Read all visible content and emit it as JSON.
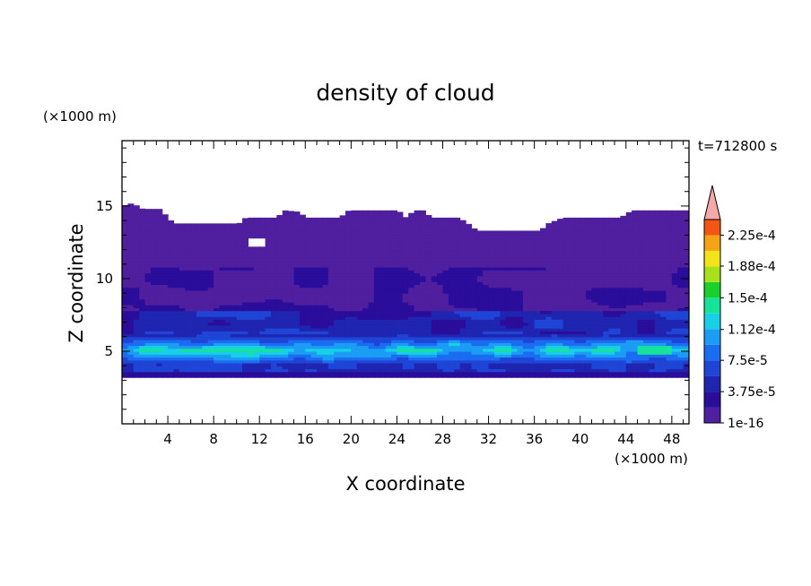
{
  "chart_data": {
    "type": "heatmap",
    "title": "density of cloud",
    "xlabel": "X coordinate",
    "ylabel": "Z coordinate",
    "x_unit_label": "(×1000 m)",
    "z_unit_label": "(×1000 m)",
    "time_label": "t=712800 s",
    "xlim": [
      0,
      49.5
    ],
    "ylim": [
      0,
      19.5
    ],
    "x_ticks": [
      4,
      8,
      12,
      16,
      20,
      24,
      28,
      32,
      36,
      40,
      44,
      48
    ],
    "y_ticks": [
      5,
      10,
      15
    ],
    "colorbar": {
      "labels": [
        "2.25e-4",
        "1.88e-4",
        "1.5e-4",
        "1.12e-4",
        "7.5e-5",
        "3.75e-5",
        "1e-16"
      ],
      "label_levels": [
        0.000225,
        0.000188,
        0.00015,
        0.000112,
        7.5e-05,
        3.75e-05,
        1e-16
      ],
      "levels": [
        1e-16,
        1.875e-05,
        3.75e-05,
        5.625e-05,
        7.5e-05,
        9.375e-05,
        0.0001125,
        0.00013125,
        0.00015,
        0.00016875,
        0.0001875,
        0.00020625,
        0.000225,
        0.00024375
      ],
      "colors": [
        "#4f1f9f",
        "#2a0d9a",
        "#1f25b0",
        "#1f45d6",
        "#1a6cf0",
        "#1b9cf5",
        "#18d0e6",
        "#16e39a",
        "#19d12a",
        "#a7e11a",
        "#f2e419",
        "#f4a316",
        "#f45414",
        "#e8181a"
      ],
      "over_color": "#f4a9a9"
    },
    "cloud": {
      "top_km": [
        [
          0,
          15.0
        ],
        [
          0.9,
          15.2
        ],
        [
          1.8,
          14.8
        ],
        [
          3.3,
          14.8
        ],
        [
          4.5,
          13.8
        ],
        [
          10.2,
          13.8
        ],
        [
          10.8,
          14.2
        ],
        [
          13.5,
          14.2
        ],
        [
          14.2,
          14.7
        ],
        [
          15.5,
          14.6
        ],
        [
          16.0,
          14.2
        ],
        [
          19.0,
          14.2
        ],
        [
          19.8,
          14.7
        ],
        [
          24.1,
          14.7
        ],
        [
          24.8,
          14.2
        ],
        [
          25.5,
          14.7
        ],
        [
          26.3,
          14.7
        ],
        [
          27.0,
          14.2
        ],
        [
          29.4,
          14.2
        ],
        [
          30.2,
          13.8
        ],
        [
          31.0,
          13.3
        ],
        [
          36.5,
          13.3
        ],
        [
          37.2,
          13.8
        ],
        [
          38.5,
          14.2
        ],
        [
          43.5,
          14.2
        ],
        [
          44.5,
          14.7
        ],
        [
          49.5,
          14.7
        ]
      ],
      "base_km": 3.2,
      "hole": {
        "x": [
          11.2,
          12.7
        ],
        "z": [
          12.2,
          12.7
        ]
      }
    }
  }
}
